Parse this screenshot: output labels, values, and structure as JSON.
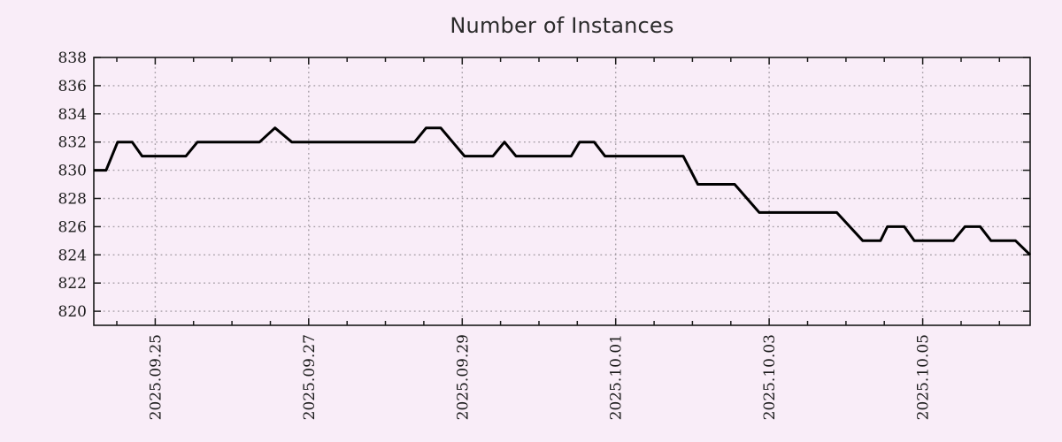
{
  "title": "Number of Instances",
  "colors": {
    "background": "#f9edf8",
    "line": "#000000",
    "grid": "#a8a0a8",
    "axis": "#1a1a1a",
    "text": "#1a1a1a",
    "title_text": "#2b2b2b"
  },
  "chart_data": {
    "type": "line",
    "title": "Number of Instances",
    "xlabel": "",
    "ylabel": "",
    "legend": "none",
    "grid": true,
    "x_unit": "days since 2025-09-25 00:00",
    "xlim": [
      -0.8,
      11.4
    ],
    "ylim": [
      819,
      838
    ],
    "y_ticks": [
      820,
      822,
      824,
      826,
      828,
      830,
      832,
      834,
      836,
      838
    ],
    "x_ticks": [
      {
        "t": 0,
        "label": "2025.09.25"
      },
      {
        "t": 2,
        "label": "2025.09.27"
      },
      {
        "t": 4,
        "label": "2025.09.29"
      },
      {
        "t": 6,
        "label": "2025.10.01"
      },
      {
        "t": 8,
        "label": "2025.10.03"
      },
      {
        "t": 10,
        "label": "2025.10.05"
      }
    ],
    "x_minor_step": 0.5,
    "points": [
      [
        -0.8,
        830
      ],
      [
        -0.64,
        830
      ],
      [
        -0.49,
        832
      ],
      [
        -0.3,
        832
      ],
      [
        -0.17,
        831
      ],
      [
        0.4,
        831
      ],
      [
        0.55,
        832
      ],
      [
        1.36,
        832
      ],
      [
        1.56,
        833
      ],
      [
        1.78,
        832
      ],
      [
        3.38,
        832
      ],
      [
        3.53,
        833
      ],
      [
        3.72,
        833
      ],
      [
        4.03,
        831
      ],
      [
        4.4,
        831
      ],
      [
        4.55,
        832
      ],
      [
        4.7,
        831
      ],
      [
        5.42,
        831
      ],
      [
        5.53,
        832
      ],
      [
        5.72,
        832
      ],
      [
        5.86,
        831
      ],
      [
        6.88,
        831
      ],
      [
        7.07,
        829
      ],
      [
        7.55,
        829
      ],
      [
        7.87,
        827
      ],
      [
        8.88,
        827
      ],
      [
        9.22,
        825
      ],
      [
        9.45,
        825
      ],
      [
        9.54,
        826
      ],
      [
        9.76,
        826
      ],
      [
        9.89,
        825
      ],
      [
        10.4,
        825
      ],
      [
        10.55,
        826
      ],
      [
        10.75,
        826
      ],
      [
        10.89,
        825
      ],
      [
        11.21,
        825
      ],
      [
        11.4,
        824
      ]
    ]
  }
}
